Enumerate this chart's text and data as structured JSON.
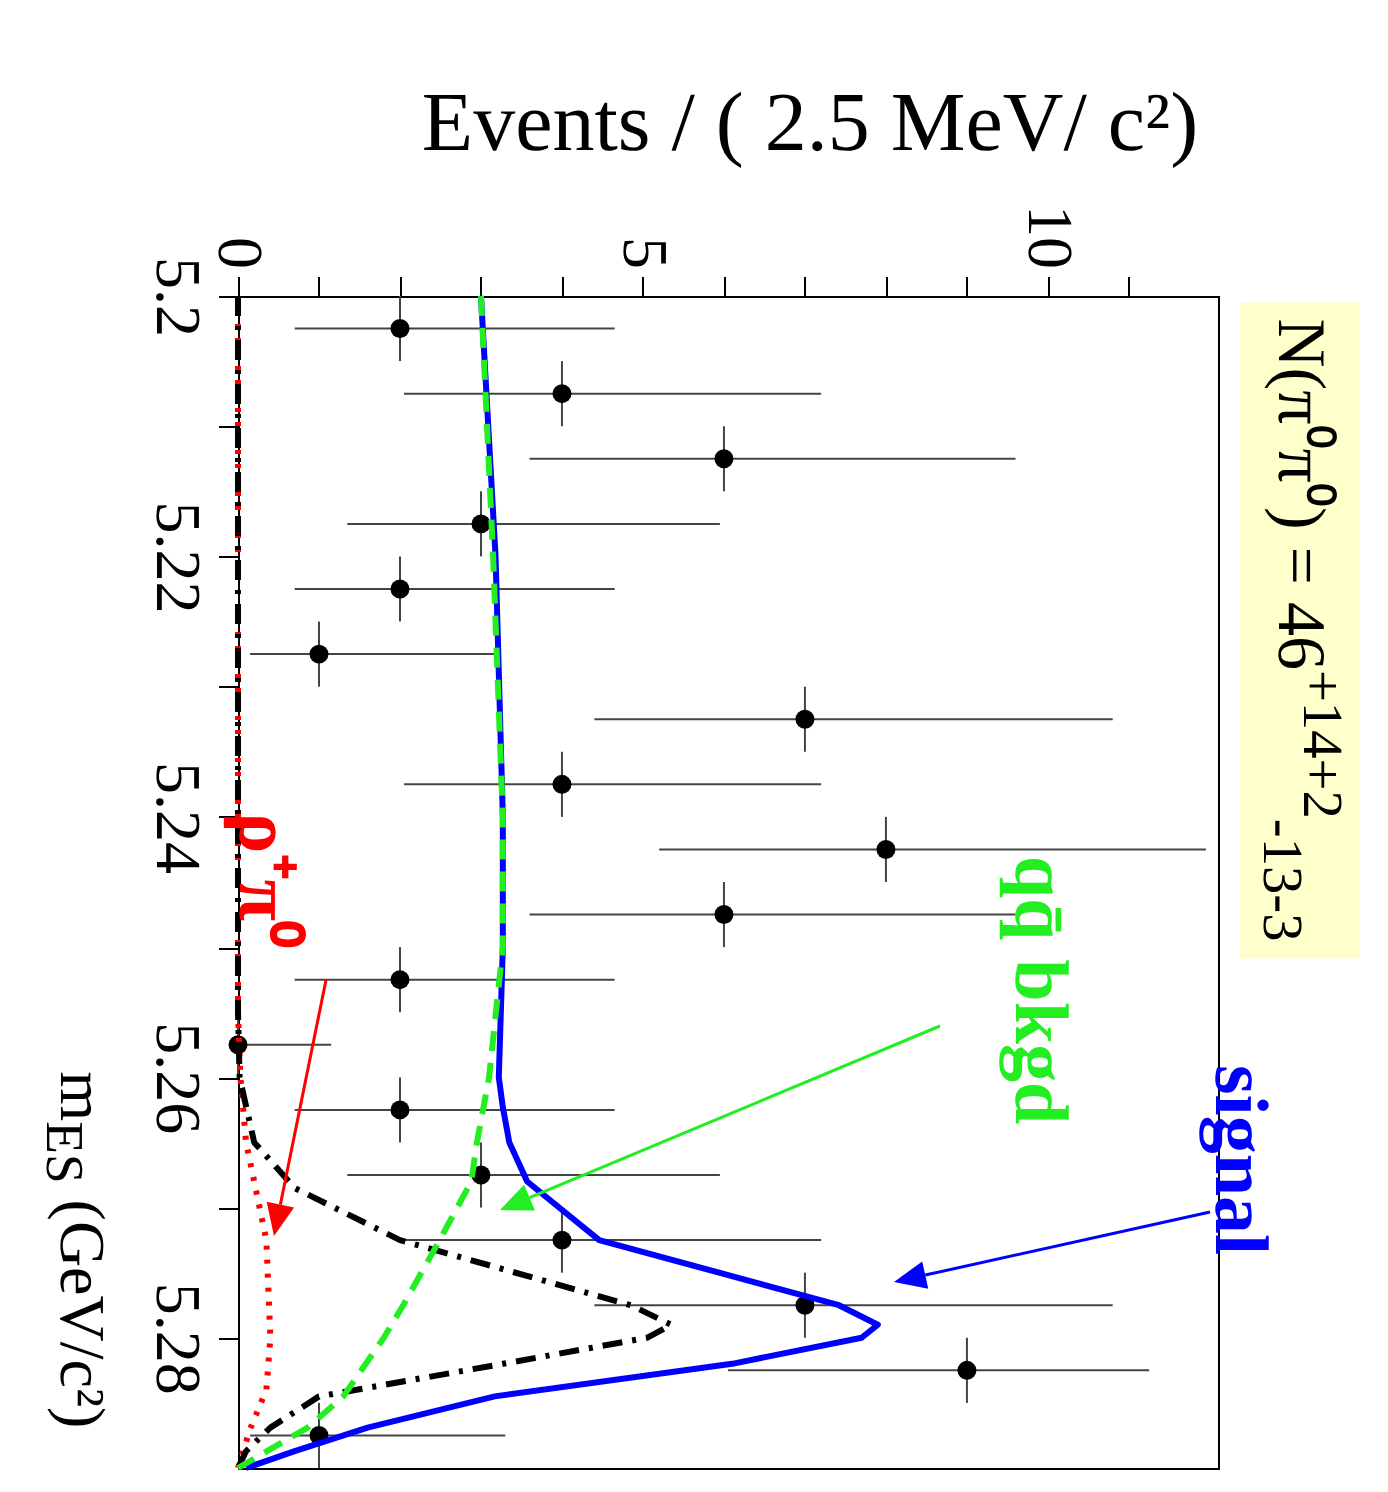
{
  "chart_data": {
    "type": "scatter",
    "xlabel": "Events / ( 2.5 MeV/ c²)",
    "ylabel": "m$_{ES}$ (GeV/c²)",
    "annotations": [
      "N(π⁰π⁰) = 46$^{+14+2}$$_{-13-3}$"
    ],
    "ylim": [
      5.29,
      5.2
    ],
    "yticks": [
      5.2,
      {
        "value": 5.21,
        "label": null
      },
      5.22,
      {
        "value": 5.23,
        "label": null
      },
      5.24,
      {
        "value": 5.25,
        "label": null
      },
      5.26,
      {
        "value": 5.27,
        "label": null
      },
      5.28
    ],
    "xlim": [
      0,
      12.1
    ],
    "xticks": [
      0,
      {
        "value": 1,
        "label": null
      },
      {
        "value": 2,
        "label": null
      },
      {
        "value": 3,
        "label": null
      },
      {
        "value": 4,
        "label": null
      },
      5,
      {
        "value": 6,
        "label": null
      },
      {
        "value": 7,
        "label": null
      },
      {
        "value": 8,
        "label": null
      },
      {
        "value": 9,
        "label": null
      },
      10,
      {
        "value": 11,
        "label": null
      }
    ],
    "grid": false,
    "series": [
      {
        "type": "scatter",
        "color": "#000000",
        "marker": "circle",
        "values": [
          5.2025,
          5.2075,
          5.2125,
          5.2175,
          5.2225,
          5.2275,
          5.2325,
          5.2375,
          5.2425,
          5.2475,
          5.2525,
          5.2575,
          5.2625,
          5.2675,
          5.2725,
          5.2775,
          5.2825,
          5.2875
        ],
        "x": [
          2,
          4,
          6,
          3,
          2,
          1,
          7,
          4,
          8,
          6,
          2,
          0,
          2,
          3,
          4,
          7,
          9,
          1
        ],
        "xerrors": [
          [
            0.7,
            4.65
          ],
          [
            2.05,
            7.2
          ],
          [
            3.6,
            9.6
          ],
          [
            1.35,
            5.95
          ],
          [
            0.7,
            4.65
          ],
          [
            0.15,
            3.2
          ],
          [
            4.4,
            10.8
          ],
          [
            2.05,
            7.2
          ],
          [
            5.2,
            11.95
          ],
          [
            3.6,
            9.6
          ],
          [
            0.7,
            4.65
          ],
          [
            0,
            1.15
          ],
          [
            0.7,
            4.65
          ],
          [
            1.35,
            5.95
          ],
          [
            2.05,
            7.2
          ],
          [
            4.4,
            10.8
          ],
          [
            6.05,
            11.25
          ],
          [
            0.15,
            3.3
          ]
        ],
        "errors": [
          0.0025,
          0.0025,
          0.0025,
          0.0025,
          0.0025,
          0.0025,
          0.0025,
          0.0025,
          0.0025,
          0.0025,
          0.0025,
          0.0025,
          0.0025,
          0.0025,
          0.0025,
          0.0025,
          0.0025,
          0.0025
        ]
      },
      {
        "type": "line",
        "name": "ρ⁺π⁰",
        "color": "#ff0000",
        "line_style": "dotted",
        "values": [
          5.2,
          5.255,
          5.26,
          5.265,
          5.2725,
          5.28,
          5.284,
          5.287,
          5.29
        ],
        "x": [
          0,
          0,
          0.03,
          0.1,
          0.35,
          0.4,
          0.35,
          0.15,
          0
        ]
      },
      {
        "type": "line",
        "color": "#000000",
        "line_style": "dashdot",
        "values": [
          5.2,
          5.255,
          5.26,
          5.265,
          5.2685,
          5.2725,
          5.2775,
          5.279,
          5.28,
          5.282,
          5.2845,
          5.2869,
          5.2887,
          5.29
        ],
        "x": [
          0,
          0,
          0.02,
          0.2,
          0.7,
          2.0,
          4.85,
          5.35,
          5.05,
          3.27,
          1.0,
          0.4,
          0.1,
          0
        ]
      },
      {
        "type": "line",
        "name": "signal",
        "color": "#0000ff",
        "line_style": "solid",
        "values": [
          5.2,
          5.22,
          5.24,
          5.25,
          5.26,
          5.2623,
          5.265,
          5.268,
          5.2725,
          5.275,
          5.2775,
          5.279,
          5.28,
          5.282,
          5.2845,
          5.2869,
          5.2887,
          5.29
        ],
        "x": [
          3.0,
          3.18,
          3.27,
          3.27,
          3.22,
          3.27,
          3.35,
          3.57,
          4.46,
          5.94,
          7.42,
          7.9,
          7.7,
          6.1,
          3.17,
          1.6,
          0.7,
          0.1
        ]
      },
      {
        "type": "line",
        "name": "qq̄ bkgd",
        "color": "#22ee22",
        "line_style": "dashed",
        "values": [
          5.2,
          5.22,
          5.24,
          5.25,
          5.26,
          5.265,
          5.268,
          5.2725,
          5.2775,
          5.28,
          5.2845,
          5.2869,
          5.29
        ],
        "x": [
          3.0,
          3.15,
          3.27,
          3.27,
          3.1,
          2.95,
          2.88,
          2.49,
          2.04,
          1.8,
          1.3,
          0.86,
          0
        ]
      }
    ]
  }
}
